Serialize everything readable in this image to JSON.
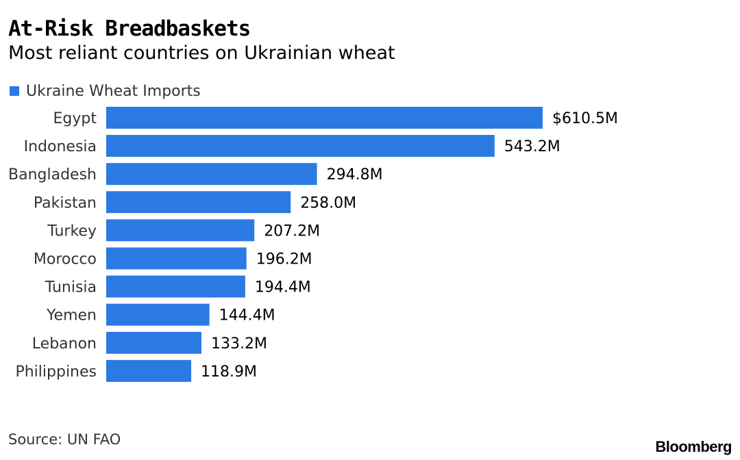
{
  "header": {
    "title": "At-Risk Breadbaskets",
    "subtitle": "Most reliant countries on Ukrainian wheat"
  },
  "legend": {
    "label": "Ukraine Wheat Imports"
  },
  "colors": {
    "bar": "#2a7ae2",
    "text": "#000000",
    "muted": "#333333"
  },
  "chart_data": {
    "type": "bar",
    "orientation": "horizontal",
    "title": "At-Risk Breadbaskets",
    "subtitle": "Most reliant countries on Ukrainian wheat",
    "series": [
      {
        "name": "Ukraine Wheat Imports",
        "values": [
          610.5,
          543.2,
          294.8,
          258.0,
          207.2,
          196.2,
          194.4,
          144.4,
          133.2,
          118.9
        ]
      }
    ],
    "categories": [
      "Egypt",
      "Indonesia",
      "Bangladesh",
      "Pakistan",
      "Turkey",
      "Morocco",
      "Tunisia",
      "Yemen",
      "Lebanon",
      "Philippines"
    ],
    "value_labels": [
      "$610.5M",
      "543.2M",
      "294.8M",
      "258.0M",
      "207.2M",
      "196.2M",
      "194.4M",
      "144.4M",
      "133.2M",
      "118.9M"
    ],
    "unit": "USD millions",
    "xlim": [
      0,
      610.5
    ],
    "xlabel": "",
    "ylabel": "",
    "grid": false,
    "legend_position": "top-left"
  },
  "footer": {
    "source": "Source: UN FAO",
    "brand": "Bloomberg"
  }
}
